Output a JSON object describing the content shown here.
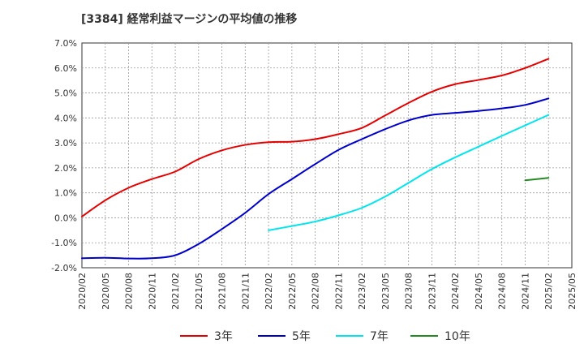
{
  "chart_data": {
    "type": "line",
    "title": "[3384]  経常利益マージンの平均値の推移",
    "ylim": [
      -2.0,
      7.0
    ],
    "y_ticks": [
      "7.0%",
      "6.0%",
      "5.0%",
      "4.0%",
      "3.0%",
      "2.0%",
      "1.0%",
      "0.0%",
      "-1.0%",
      "-2.0%"
    ],
    "x_ticks": [
      "2020/02",
      "2020/05",
      "2020/08",
      "2020/11",
      "2021/02",
      "2021/05",
      "2021/08",
      "2021/11",
      "2022/02",
      "2022/05",
      "2022/08",
      "2022/11",
      "2023/02",
      "2023/05",
      "2023/08",
      "2023/11",
      "2024/02",
      "2024/05",
      "2024/08",
      "2024/11",
      "2025/02",
      "2025/05"
    ],
    "grid": true,
    "legend_position": "bottom",
    "series": [
      {
        "name": "3年",
        "color": "#e60000",
        "x": [
          "2020/02",
          "2020/05",
          "2020/08",
          "2020/11",
          "2021/02",
          "2021/05",
          "2021/08",
          "2021/11",
          "2022/02",
          "2022/05",
          "2022/08",
          "2022/11",
          "2023/02",
          "2023/05",
          "2023/08",
          "2023/11",
          "2024/02",
          "2024/05",
          "2024/08",
          "2024/11",
          "2025/02"
        ],
        "values": [
          0.05,
          0.7,
          1.2,
          1.55,
          1.85,
          2.35,
          2.7,
          2.92,
          3.03,
          3.05,
          3.15,
          3.35,
          3.6,
          4.1,
          4.6,
          5.05,
          5.35,
          5.52,
          5.7,
          6.0,
          6.37
        ]
      },
      {
        "name": "5年",
        "color": "#0000cc",
        "x": [
          "2020/02",
          "2020/05",
          "2020/08",
          "2020/11",
          "2021/02",
          "2021/05",
          "2021/08",
          "2021/11",
          "2022/02",
          "2022/05",
          "2022/08",
          "2022/11",
          "2023/02",
          "2023/05",
          "2023/08",
          "2023/11",
          "2024/02",
          "2024/05",
          "2024/08",
          "2024/11",
          "2025/02"
        ],
        "values": [
          -1.62,
          -1.6,
          -1.63,
          -1.62,
          -1.5,
          -1.05,
          -0.45,
          0.2,
          0.95,
          1.55,
          2.15,
          2.72,
          3.15,
          3.55,
          3.9,
          4.12,
          4.2,
          4.28,
          4.38,
          4.52,
          4.78
        ]
      },
      {
        "name": "7年",
        "color": "#00e5ee",
        "x": [
          "2022/02",
          "2022/05",
          "2022/08",
          "2022/11",
          "2023/02",
          "2023/05",
          "2023/08",
          "2023/11",
          "2024/02",
          "2024/05",
          "2024/08",
          "2024/11",
          "2025/02"
        ],
        "values": [
          -0.5,
          -0.33,
          -0.15,
          0.1,
          0.4,
          0.85,
          1.4,
          1.95,
          2.42,
          2.85,
          3.28,
          3.7,
          4.12
        ]
      },
      {
        "name": "10年",
        "color": "#228b22",
        "x": [
          "2024/11",
          "2025/02"
        ],
        "values": [
          1.5,
          1.6
        ]
      }
    ]
  }
}
